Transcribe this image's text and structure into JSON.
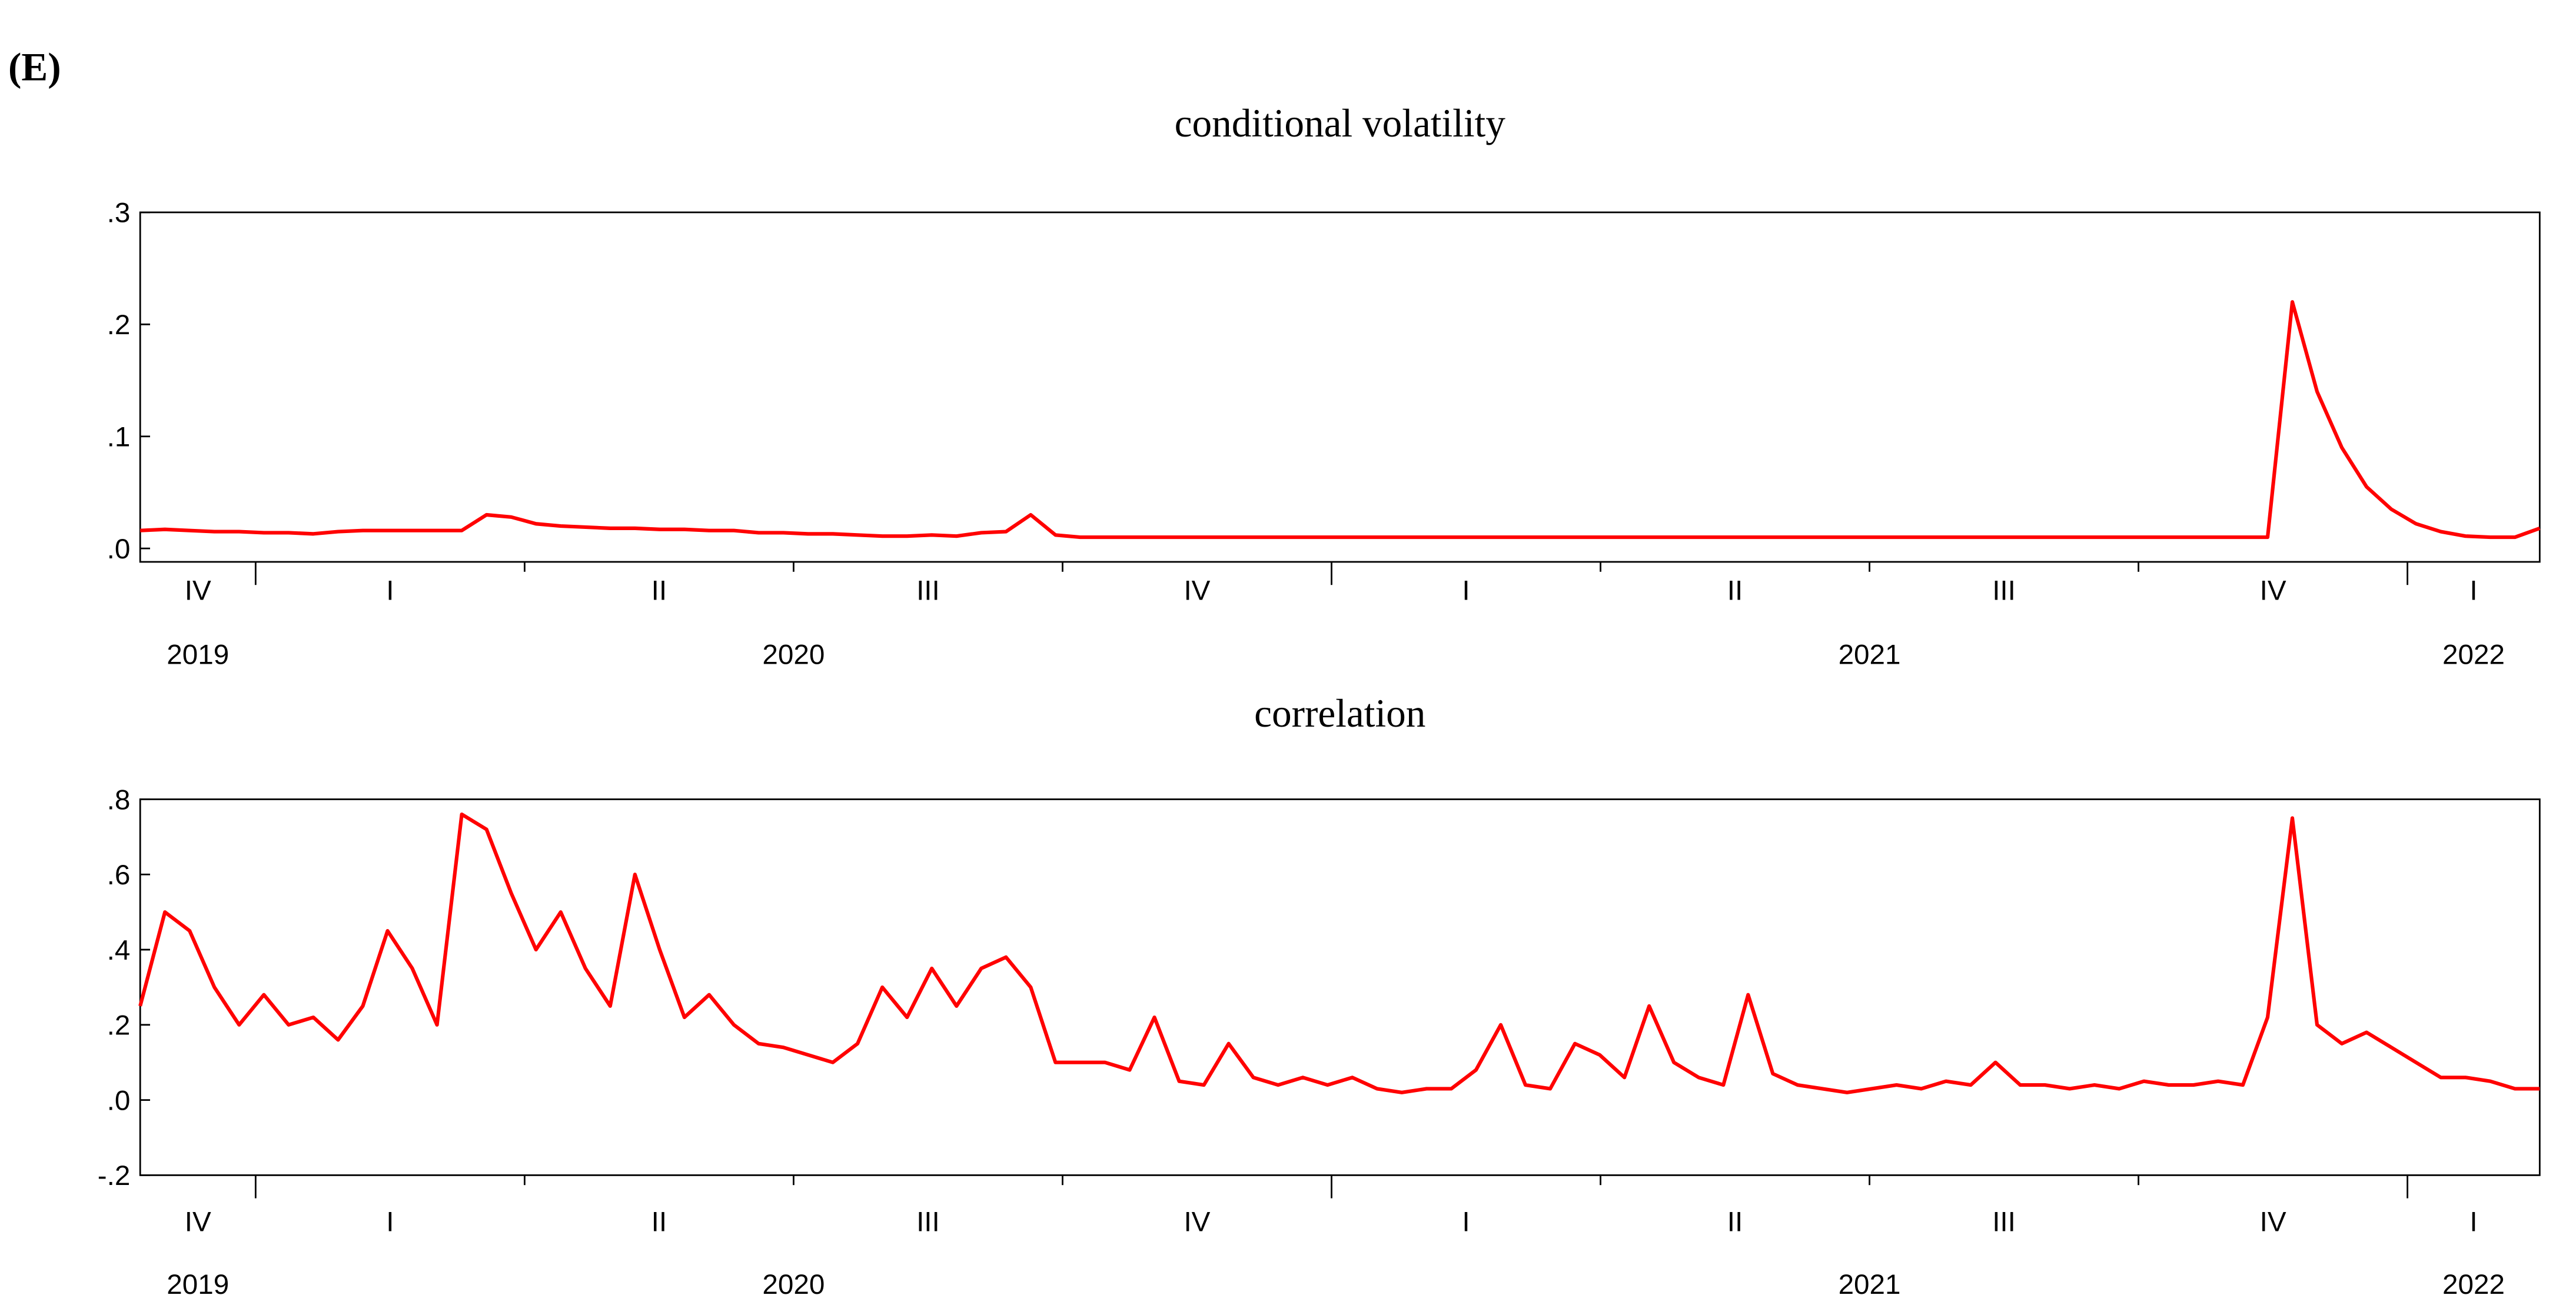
{
  "panel_label": "(E)",
  "chart_data": [
    {
      "type": "line",
      "title": "conditional volatility",
      "color": "#ff0000",
      "ylim": [
        -0.012,
        0.3
      ],
      "yticks": [
        {
          "value": 0.0,
          "label": ".0"
        },
        {
          "value": 0.1,
          "label": ".1"
        },
        {
          "value": 0.2,
          "label": ".2"
        },
        {
          "value": 0.3,
          "label": ".3"
        }
      ],
      "quarters": [
        "IV",
        "I",
        "II",
        "III",
        "IV",
        "I",
        "II",
        "III",
        "IV",
        "I"
      ],
      "years": [
        "2019",
        "2020",
        "2021",
        "2022"
      ],
      "values": [
        0.016,
        0.017,
        0.016,
        0.015,
        0.015,
        0.014,
        0.014,
        0.013,
        0.015,
        0.016,
        0.016,
        0.016,
        0.016,
        0.016,
        0.03,
        0.028,
        0.022,
        0.02,
        0.019,
        0.018,
        0.018,
        0.017,
        0.017,
        0.016,
        0.016,
        0.014,
        0.014,
        0.013,
        0.013,
        0.012,
        0.011,
        0.011,
        0.012,
        0.011,
        0.014,
        0.015,
        0.03,
        0.012,
        0.01,
        0.01,
        0.01,
        0.01,
        0.01,
        0.01,
        0.01,
        0.01,
        0.01,
        0.01,
        0.01,
        0.01,
        0.01,
        0.01,
        0.01,
        0.01,
        0.01,
        0.01,
        0.01,
        0.01,
        0.01,
        0.01,
        0.01,
        0.01,
        0.01,
        0.01,
        0.01,
        0.01,
        0.01,
        0.01,
        0.01,
        0.01,
        0.01,
        0.01,
        0.01,
        0.01,
        0.01,
        0.01,
        0.01,
        0.01,
        0.01,
        0.01,
        0.01,
        0.01,
        0.01,
        0.01,
        0.01,
        0.01,
        0.01,
        0.22,
        0.14,
        0.09,
        0.055,
        0.035,
        0.022,
        0.015,
        0.011,
        0.01,
        0.01,
        0.018
      ]
    },
    {
      "type": "line",
      "title": "correlation",
      "color": "#ff0000",
      "ylim": [
        -0.2,
        0.8
      ],
      "yticks": [
        {
          "value": -0.2,
          "label": "-.2"
        },
        {
          "value": 0.0,
          "label": ".0"
        },
        {
          "value": 0.2,
          "label": ".2"
        },
        {
          "value": 0.4,
          "label": ".4"
        },
        {
          "value": 0.6,
          "label": ".6"
        },
        {
          "value": 0.8,
          "label": ".8"
        }
      ],
      "quarters": [
        "IV",
        "I",
        "II",
        "III",
        "IV",
        "I",
        "II",
        "III",
        "IV",
        "I"
      ],
      "years": [
        "2019",
        "2020",
        "2021",
        "2022"
      ],
      "values": [
        0.25,
        0.5,
        0.45,
        0.3,
        0.2,
        0.28,
        0.2,
        0.22,
        0.16,
        0.25,
        0.45,
        0.35,
        0.2,
        0.76,
        0.72,
        0.55,
        0.4,
        0.5,
        0.35,
        0.25,
        0.6,
        0.4,
        0.22,
        0.28,
        0.2,
        0.15,
        0.14,
        0.12,
        0.1,
        0.15,
        0.3,
        0.22,
        0.35,
        0.25,
        0.35,
        0.38,
        0.3,
        0.1,
        0.1,
        0.1,
        0.08,
        0.22,
        0.05,
        0.04,
        0.15,
        0.06,
        0.04,
        0.06,
        0.04,
        0.06,
        0.03,
        0.02,
        0.03,
        0.03,
        0.08,
        0.2,
        0.04,
        0.03,
        0.15,
        0.12,
        0.06,
        0.25,
        0.1,
        0.06,
        0.04,
        0.28,
        0.07,
        0.04,
        0.03,
        0.02,
        0.03,
        0.04,
        0.03,
        0.05,
        0.04,
        0.1,
        0.04,
        0.04,
        0.03,
        0.04,
        0.03,
        0.05,
        0.04,
        0.04,
        0.05,
        0.04,
        0.22,
        0.75,
        0.2,
        0.15,
        0.18,
        0.14,
        0.1,
        0.06,
        0.06,
        0.05,
        0.03,
        0.03
      ]
    }
  ]
}
